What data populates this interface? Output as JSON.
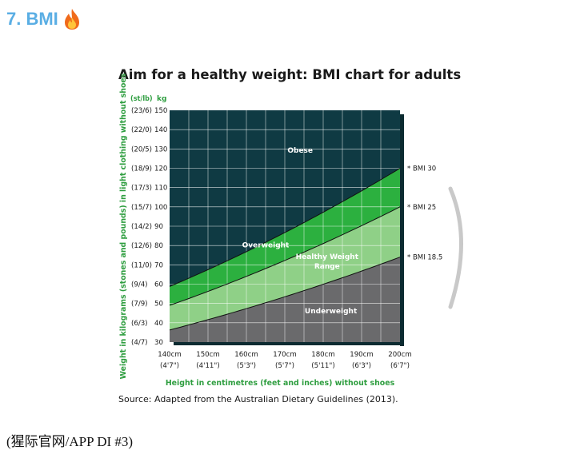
{
  "page": {
    "heading": "7. BMI",
    "heading_icon": "fire-icon",
    "heading_color": "#5aaee4",
    "footer": "(猩际官网/APP DI #3)"
  },
  "chart_data": {
    "type": "area",
    "title": "Aim for a healthy weight: BMI chart for adults",
    "source": "Source: Adapted from the Australian Dietary Guidelines (2013).",
    "xlabel": "Height in centimetres (feet and inches) without shoes",
    "ylabel": "Weight in kilograms (stones and pounds) in light clothing without shoes",
    "x_unit_label": "",
    "y_unit_label_alt": "(st/lb)",
    "y_unit_label": "kg",
    "xlim": [
      140,
      200
    ],
    "ylim": [
      30,
      150
    ],
    "x_ticks": [
      {
        "value": 140,
        "label": "140cm",
        "sub": "(4'7\")"
      },
      {
        "value": 150,
        "label": "150cm",
        "sub": "(4'11\")"
      },
      {
        "value": 160,
        "label": "160cm",
        "sub": "(5'3\")"
      },
      {
        "value": 170,
        "label": "170cm",
        "sub": "(5'7\")"
      },
      {
        "value": 180,
        "label": "180cm",
        "sub": "(5'11\")"
      },
      {
        "value": 190,
        "label": "190cm",
        "sub": "(6'3\")"
      },
      {
        "value": 200,
        "label": "200cm",
        "sub": "(6'7\")"
      }
    ],
    "y_ticks": [
      {
        "value": 150,
        "label": "150",
        "alt": "(23/6)"
      },
      {
        "value": 140,
        "label": "140",
        "alt": "(22/0)"
      },
      {
        "value": 130,
        "label": "130",
        "alt": "(20/5)"
      },
      {
        "value": 120,
        "label": "120",
        "alt": "(18/9)"
      },
      {
        "value": 110,
        "label": "110",
        "alt": "(17/3)"
      },
      {
        "value": 100,
        "label": "100",
        "alt": "(15/7)"
      },
      {
        "value": 90,
        "label": "90",
        "alt": "(14/2)"
      },
      {
        "value": 80,
        "label": "80",
        "alt": "(12/6)"
      },
      {
        "value": 70,
        "label": "70",
        "alt": "(11/0)"
      },
      {
        "value": 60,
        "label": "60",
        "alt": "(9/4)"
      },
      {
        "value": 50,
        "label": "50",
        "alt": "(7/9)"
      },
      {
        "value": 40,
        "label": "40",
        "alt": "(6/3)"
      },
      {
        "value": 30,
        "label": "30",
        "alt": "(4/7)"
      }
    ],
    "grid": true,
    "x_gridlines": [
      145,
      150,
      155,
      160,
      165,
      170,
      175,
      180,
      185,
      190,
      195
    ],
    "y_gridlines": [
      40,
      50,
      60,
      70,
      80,
      90,
      100,
      110,
      120,
      130,
      140
    ],
    "bmi_lines": [
      {
        "bmi": 30,
        "label": "* BMI 30"
      },
      {
        "bmi": 25,
        "label": "* BMI 25"
      },
      {
        "bmi": 18.5,
        "label": "* BMI 18.5"
      }
    ],
    "regions": [
      {
        "name": "Obese",
        "label_lines": [
          "Obese"
        ],
        "color": "#0f3a43",
        "label_at": {
          "x": 174,
          "y": 128
        }
      },
      {
        "name": "Overweight",
        "label_lines": [
          "Overweight"
        ],
        "color": "#2cb03f",
        "label_at": {
          "x": 165,
          "y": 79
        }
      },
      {
        "name": "Healthy Weight Range",
        "label_lines": [
          "Healthy Weight",
          "Range"
        ],
        "color": "#8fd087",
        "label_at": {
          "x": 181,
          "y": 73
        }
      },
      {
        "name": "Underweight",
        "label_lines": [
          "Underweight"
        ],
        "color": "#6a6a6c",
        "label_at": {
          "x": 182,
          "y": 45
        }
      }
    ],
    "colors": {
      "axis_green": "#2f9e40",
      "bmi_line": "#111111",
      "grid": "#ffffff",
      "frame_shadow": "#0c2b31"
    }
  }
}
